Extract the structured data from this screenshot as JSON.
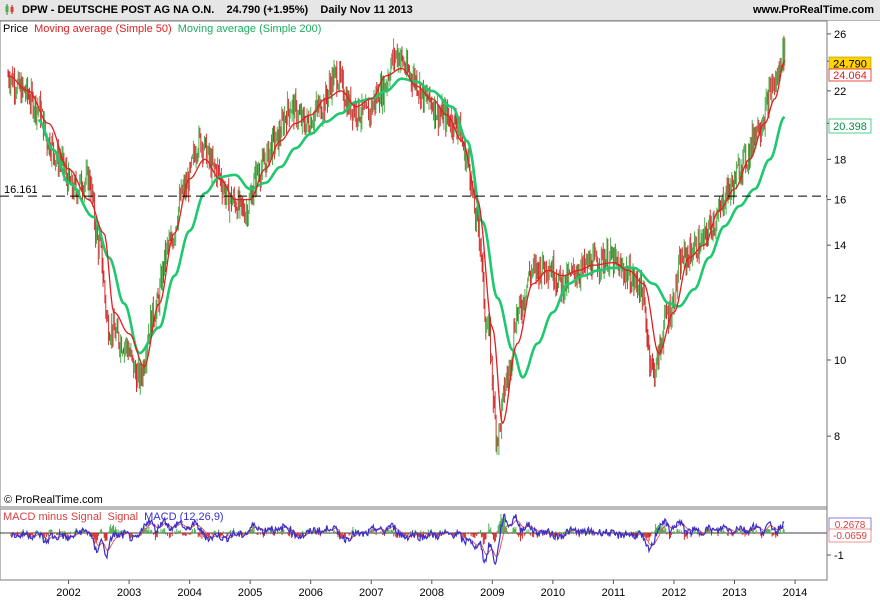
{
  "header": {
    "symbol": "DPW - DEUTSCHE POST AG NA O.N.",
    "quote": "24.790 (+1.95%)",
    "period_date": "Daily  Nov 11 2013",
    "site": "www.ProRealTime.com"
  },
  "legend": {
    "price": "Price",
    "ma50": "Moving average (Simple 50)",
    "ma200": "Moving average (Simple 200)"
  },
  "copyright": "© ProRealTime.com",
  "macd_legend": {
    "hist": "MACD minus Signal",
    "signal": "Signal",
    "macd": "MACD (12,26,9)"
  },
  "colors": {
    "up": "#4caf50",
    "down": "#d32f2f",
    "ma50": "#e02020",
    "ma200": "#1ec86e",
    "macd": "#3a2fc8",
    "signal": "#e05050",
    "price_tag_bg": "#ffd400"
  },
  "chart_data": [
    {
      "type": "line",
      "scale": "log",
      "ylim": [
        6.5,
        27
      ],
      "y_ticks": [
        8,
        10,
        12,
        14,
        16,
        18,
        20,
        22,
        24,
        26
      ],
      "x_tick_labels": [
        "2002",
        "2003",
        "2004",
        "2005",
        "2006",
        "2007",
        "2008",
        "2009",
        "2010",
        "2011",
        "2012",
        "2013",
        "2014"
      ],
      "x_range": [
        "2001-01",
        "2013-12"
      ],
      "reference_line": {
        "value": 16.161,
        "label": "16.161"
      },
      "last_price_tag": "24.790",
      "ma50_tag": "24.064",
      "ma200_tag": "20.398",
      "price_anchors": [
        [
          "2001-01",
          23
        ],
        [
          "2001-04",
          22
        ],
        [
          "2001-07",
          21
        ],
        [
          "2001-09",
          19
        ],
        [
          "2001-11",
          18
        ],
        [
          "2002-02",
          16.5
        ],
        [
          "2002-05",
          17
        ],
        [
          "2002-07",
          14
        ],
        [
          "2002-09",
          11
        ],
        [
          "2002-12",
          10.5
        ],
        [
          "2003-03",
          9.5
        ],
        [
          "2003-06",
          11.5
        ],
        [
          "2003-09",
          14
        ],
        [
          "2003-12",
          16.5
        ],
        [
          "2004-03",
          19
        ],
        [
          "2004-06",
          17.5
        ],
        [
          "2004-09",
          16
        ],
        [
          "2004-12",
          15.5
        ],
        [
          "2005-03",
          17.5
        ],
        [
          "2005-06",
          19
        ],
        [
          "2005-09",
          21
        ],
        [
          "2005-12",
          20
        ],
        [
          "2006-03",
          21
        ],
        [
          "2006-06",
          23
        ],
        [
          "2006-09",
          21
        ],
        [
          "2006-12",
          20.5
        ],
        [
          "2007-03",
          22
        ],
        [
          "2007-06",
          24.5
        ],
        [
          "2007-09",
          23
        ],
        [
          "2007-12",
          21.5
        ],
        [
          "2008-03",
          20.5
        ],
        [
          "2008-06",
          20
        ],
        [
          "2008-08",
          18
        ],
        [
          "2008-10",
          15
        ],
        [
          "2008-12",
          11
        ],
        [
          "2009-02",
          8
        ],
        [
          "2009-04",
          9.5
        ],
        [
          "2009-06",
          11.5
        ],
        [
          "2009-09",
          13
        ],
        [
          "2009-12",
          13.2
        ],
        [
          "2010-03",
          12.5
        ],
        [
          "2010-06",
          13
        ],
        [
          "2010-09",
          13.3
        ],
        [
          "2010-12",
          13.5
        ],
        [
          "2011-03",
          13
        ],
        [
          "2011-06",
          12.5
        ],
        [
          "2011-09",
          9.7
        ],
        [
          "2011-12",
          11.5
        ],
        [
          "2012-03",
          13.5
        ],
        [
          "2012-06",
          14
        ],
        [
          "2012-09",
          15
        ],
        [
          "2012-12",
          16.5
        ],
        [
          "2013-03",
          18
        ],
        [
          "2013-06",
          20
        ],
        [
          "2013-09",
          22.5
        ],
        [
          "2013-11",
          24.79
        ]
      ],
      "ma50_anchors": [
        [
          "2001-01",
          23
        ],
        [
          "2001-05",
          22
        ],
        [
          "2001-09",
          20
        ],
        [
          "2002-01",
          17.5
        ],
        [
          "2002-05",
          16
        ],
        [
          "2002-08",
          14.5
        ],
        [
          "2002-10",
          11.5
        ],
        [
          "2003-01",
          10.8
        ],
        [
          "2003-04",
          9.8
        ],
        [
          "2003-07",
          11.8
        ],
        [
          "2003-10",
          14.5
        ],
        [
          "2004-01",
          17
        ],
        [
          "2004-04",
          18
        ],
        [
          "2004-07",
          17
        ],
        [
          "2004-10",
          16
        ],
        [
          "2005-01",
          16
        ],
        [
          "2005-04",
          17.5
        ],
        [
          "2005-07",
          19
        ],
        [
          "2005-10",
          20
        ],
        [
          "2006-01",
          20.5
        ],
        [
          "2006-04",
          21.5
        ],
        [
          "2006-07",
          22
        ],
        [
          "2006-10",
          21
        ],
        [
          "2007-01",
          21.5
        ],
        [
          "2007-04",
          23
        ],
        [
          "2007-07",
          23.5
        ],
        [
          "2007-10",
          22.3
        ],
        [
          "2008-01",
          21.5
        ],
        [
          "2008-04",
          20.5
        ],
        [
          "2008-07",
          19
        ],
        [
          "2008-10",
          16
        ],
        [
          "2009-01",
          11
        ],
        [
          "2009-03",
          8.3
        ],
        [
          "2009-06",
          10.5
        ],
        [
          "2009-09",
          12.5
        ],
        [
          "2009-12",
          13
        ],
        [
          "2010-03",
          12.8
        ],
        [
          "2010-06",
          13
        ],
        [
          "2010-09",
          13.2
        ],
        [
          "2011-01",
          13.3
        ],
        [
          "2011-04",
          13
        ],
        [
          "2011-07",
          12.5
        ],
        [
          "2011-10",
          10.2
        ],
        [
          "2012-01",
          11.5
        ],
        [
          "2012-04",
          13.5
        ],
        [
          "2012-07",
          14
        ],
        [
          "2012-10",
          15.5
        ],
        [
          "2013-01",
          16.5
        ],
        [
          "2013-04",
          18
        ],
        [
          "2013-07",
          20
        ],
        [
          "2013-09",
          21.5
        ],
        [
          "2013-11",
          24.064
        ]
      ],
      "ma200_anchors": [
        [
          "2001-07",
          20.2
        ],
        [
          "2001-10",
          18.5
        ],
        [
          "2002-01",
          16.8
        ],
        [
          "2002-06",
          15.2
        ],
        [
          "2002-09",
          13.5
        ],
        [
          "2002-12",
          11.8
        ],
        [
          "2003-03",
          10.2
        ],
        [
          "2003-07",
          11
        ],
        [
          "2003-10",
          12.8
        ],
        [
          "2004-01",
          14.6
        ],
        [
          "2004-04",
          16.3
        ],
        [
          "2004-07",
          17.1
        ],
        [
          "2004-10",
          17.2
        ],
        [
          "2005-01",
          16.5
        ],
        [
          "2005-04",
          16.8
        ],
        [
          "2005-07",
          17.6
        ],
        [
          "2005-10",
          18.6
        ],
        [
          "2006-01",
          19.4
        ],
        [
          "2006-04",
          20.1
        ],
        [
          "2006-07",
          20.6
        ],
        [
          "2006-10",
          21.3
        ],
        [
          "2007-01",
          21.5
        ],
        [
          "2007-04",
          22
        ],
        [
          "2007-07",
          22.8
        ],
        [
          "2007-10",
          22.6
        ],
        [
          "2008-01",
          22
        ],
        [
          "2008-05",
          21
        ],
        [
          "2008-08",
          19
        ],
        [
          "2008-11",
          15
        ],
        [
          "2009-02",
          12
        ],
        [
          "2009-05",
          10.3
        ],
        [
          "2009-07",
          9.5
        ],
        [
          "2009-10",
          10.5
        ],
        [
          "2010-01",
          11.5
        ],
        [
          "2010-04",
          12.5
        ],
        [
          "2010-07",
          12.8
        ],
        [
          "2010-10",
          13
        ],
        [
          "2011-01",
          13.1
        ],
        [
          "2011-05",
          13.1
        ],
        [
          "2011-09",
          12.5
        ],
        [
          "2011-12",
          11.8
        ],
        [
          "2012-02",
          11.7
        ],
        [
          "2012-05",
          12.3
        ],
        [
          "2012-08",
          13.5
        ],
        [
          "2012-11",
          14.8
        ],
        [
          "2013-02",
          15.7
        ],
        [
          "2013-05",
          16.5
        ],
        [
          "2013-08",
          18
        ],
        [
          "2013-11",
          20.398
        ]
      ]
    },
    {
      "type": "line",
      "name": "MACD (12,26,9)",
      "ylim": [
        -1.5,
        0.9
      ],
      "y_ticks": [
        -1
      ],
      "last_tags": [
        "0.2678",
        "-0.0659"
      ]
    }
  ]
}
